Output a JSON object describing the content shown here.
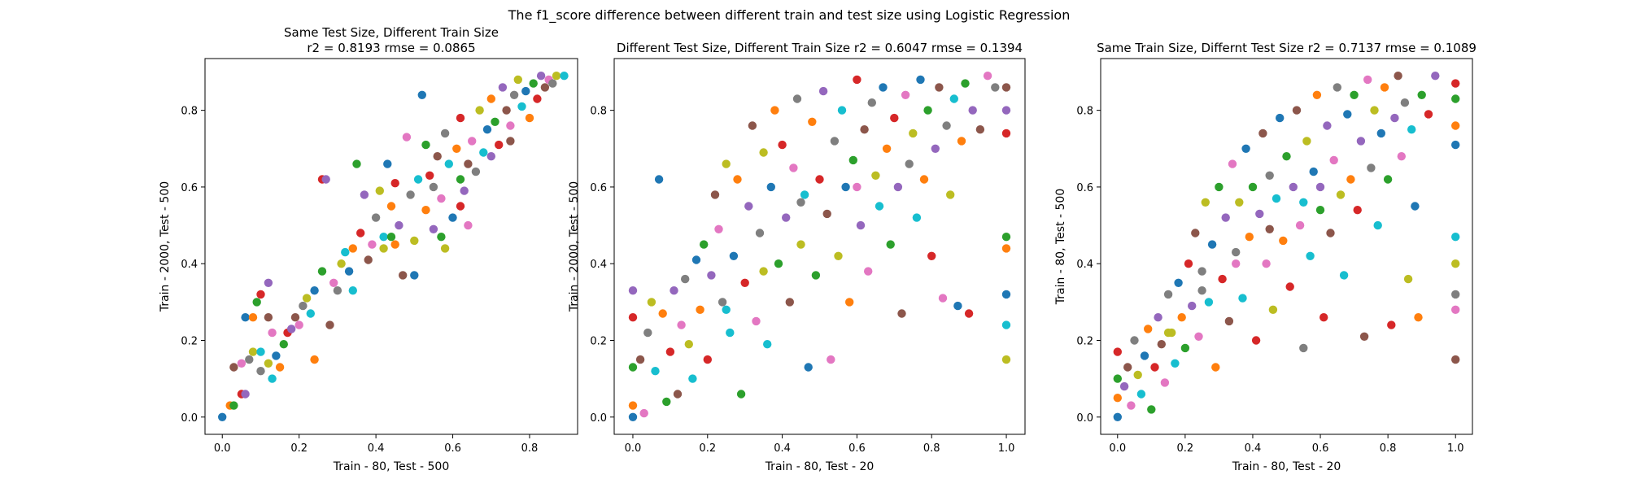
{
  "figure": {
    "title": "The f1_score difference between different train and test size using Logistic Regression"
  },
  "colors": [
    "#1f77b4",
    "#ff7f0e",
    "#2ca02c",
    "#d62728",
    "#9467bd",
    "#8c564b",
    "#e377c2",
    "#7f7f7f",
    "#bcbd22",
    "#17becf"
  ],
  "chart_data": [
    {
      "type": "scatter",
      "title_lines": [
        "Same Test Size, Different Train Size",
        "r2 = 0.8193 rmse = 0.0865"
      ],
      "xlabel": "Train - 80, Test - 500",
      "ylabel": "Train - 2000, Test - 500",
      "xlim": [
        -0.045,
        0.925
      ],
      "ylim": [
        -0.045,
        0.935
      ],
      "xticks": [
        0.0,
        0.2,
        0.4,
        0.6,
        0.8
      ],
      "yticks": [
        0.0,
        0.2,
        0.4,
        0.6,
        0.8
      ],
      "grid": false,
      "points": [
        [
          0.0,
          0.0
        ],
        [
          0.02,
          0.03
        ],
        [
          0.03,
          0.03
        ],
        [
          0.05,
          0.06
        ],
        [
          0.06,
          0.06
        ],
        [
          0.03,
          0.13
        ],
        [
          0.05,
          0.14
        ],
        [
          0.07,
          0.15
        ],
        [
          0.08,
          0.17
        ],
        [
          0.1,
          0.17
        ],
        [
          0.06,
          0.26
        ],
        [
          0.08,
          0.26
        ],
        [
          0.09,
          0.3
        ],
        [
          0.1,
          0.32
        ],
        [
          0.12,
          0.35
        ],
        [
          0.12,
          0.26
        ],
        [
          0.13,
          0.22
        ],
        [
          0.1,
          0.12
        ],
        [
          0.12,
          0.14
        ],
        [
          0.13,
          0.1
        ],
        [
          0.14,
          0.16
        ],
        [
          0.15,
          0.13
        ],
        [
          0.16,
          0.19
        ],
        [
          0.17,
          0.22
        ],
        [
          0.18,
          0.23
        ],
        [
          0.19,
          0.26
        ],
        [
          0.2,
          0.24
        ],
        [
          0.21,
          0.29
        ],
        [
          0.22,
          0.31
        ],
        [
          0.23,
          0.27
        ],
        [
          0.24,
          0.33
        ],
        [
          0.24,
          0.15
        ],
        [
          0.26,
          0.38
        ],
        [
          0.26,
          0.62
        ],
        [
          0.27,
          0.62
        ],
        [
          0.28,
          0.24
        ],
        [
          0.29,
          0.35
        ],
        [
          0.3,
          0.33
        ],
        [
          0.31,
          0.4
        ],
        [
          0.32,
          0.43
        ],
        [
          0.33,
          0.38
        ],
        [
          0.34,
          0.44
        ],
        [
          0.35,
          0.66
        ],
        [
          0.36,
          0.48
        ],
        [
          0.37,
          0.58
        ],
        [
          0.38,
          0.41
        ],
        [
          0.39,
          0.45
        ],
        [
          0.4,
          0.52
        ],
        [
          0.41,
          0.59
        ],
        [
          0.42,
          0.47
        ],
        [
          0.43,
          0.66
        ],
        [
          0.44,
          0.55
        ],
        [
          0.44,
          0.47
        ],
        [
          0.45,
          0.61
        ],
        [
          0.46,
          0.5
        ],
        [
          0.47,
          0.37
        ],
        [
          0.48,
          0.73
        ],
        [
          0.49,
          0.58
        ],
        [
          0.5,
          0.46
        ],
        [
          0.51,
          0.62
        ],
        [
          0.52,
          0.84
        ],
        [
          0.53,
          0.54
        ],
        [
          0.53,
          0.71
        ],
        [
          0.54,
          0.63
        ],
        [
          0.55,
          0.49
        ],
        [
          0.56,
          0.68
        ],
        [
          0.57,
          0.57
        ],
        [
          0.58,
          0.74
        ],
        [
          0.58,
          0.44
        ],
        [
          0.59,
          0.66
        ],
        [
          0.6,
          0.52
        ],
        [
          0.61,
          0.7
        ],
        [
          0.62,
          0.62
        ],
        [
          0.62,
          0.78
        ],
        [
          0.63,
          0.59
        ],
        [
          0.64,
          0.66
        ],
        [
          0.65,
          0.72
        ],
        [
          0.66,
          0.64
        ],
        [
          0.67,
          0.8
        ],
        [
          0.68,
          0.69
        ],
        [
          0.69,
          0.75
        ],
        [
          0.7,
          0.83
        ],
        [
          0.71,
          0.77
        ],
        [
          0.72,
          0.71
        ],
        [
          0.73,
          0.86
        ],
        [
          0.74,
          0.8
        ],
        [
          0.75,
          0.76
        ],
        [
          0.76,
          0.84
        ],
        [
          0.77,
          0.88
        ],
        [
          0.78,
          0.81
        ],
        [
          0.79,
          0.85
        ],
        [
          0.8,
          0.78
        ],
        [
          0.81,
          0.87
        ],
        [
          0.82,
          0.83
        ],
        [
          0.83,
          0.89
        ],
        [
          0.84,
          0.86
        ],
        [
          0.85,
          0.88
        ],
        [
          0.86,
          0.87
        ],
        [
          0.87,
          0.89
        ],
        [
          0.89,
          0.89
        ],
        [
          0.5,
          0.37
        ],
        [
          0.45,
          0.45
        ],
        [
          0.57,
          0.47
        ],
        [
          0.62,
          0.55
        ],
        [
          0.7,
          0.68
        ],
        [
          0.75,
          0.72
        ],
        [
          0.64,
          0.5
        ],
        [
          0.55,
          0.6
        ],
        [
          0.42,
          0.44
        ],
        [
          0.34,
          0.33
        ]
      ]
    },
    {
      "type": "scatter",
      "title_lines": [
        "Different Test Size, Different Train Size r2 = 0.6047 rmse = 0.1394"
      ],
      "xlabel": "Train - 80, Test - 20",
      "ylabel": "Train - 2000, Test - 500",
      "xlim": [
        -0.05,
        1.05
      ],
      "ylim": [
        -0.045,
        0.935
      ],
      "xticks": [
        0.0,
        0.2,
        0.4,
        0.6,
        0.8,
        1.0
      ],
      "yticks": [
        0.0,
        0.2,
        0.4,
        0.6,
        0.8
      ],
      "grid": false,
      "points": [
        [
          0.0,
          0.0
        ],
        [
          0.0,
          0.03
        ],
        [
          0.0,
          0.13
        ],
        [
          0.0,
          0.26
        ],
        [
          0.0,
          0.33
        ],
        [
          0.02,
          0.15
        ],
        [
          0.03,
          0.01
        ],
        [
          0.04,
          0.22
        ],
        [
          0.05,
          0.3
        ],
        [
          0.06,
          0.12
        ],
        [
          0.07,
          0.62
        ],
        [
          0.08,
          0.27
        ],
        [
          0.09,
          0.04
        ],
        [
          0.1,
          0.17
        ],
        [
          0.11,
          0.33
        ],
        [
          0.12,
          0.06
        ],
        [
          0.13,
          0.24
        ],
        [
          0.14,
          0.36
        ],
        [
          0.15,
          0.19
        ],
        [
          0.16,
          0.1
        ],
        [
          0.17,
          0.41
        ],
        [
          0.18,
          0.28
        ],
        [
          0.19,
          0.45
        ],
        [
          0.2,
          0.15
        ],
        [
          0.21,
          0.37
        ],
        [
          0.22,
          0.58
        ],
        [
          0.23,
          0.49
        ],
        [
          0.24,
          0.3
        ],
        [
          0.25,
          0.66
        ],
        [
          0.26,
          0.22
        ],
        [
          0.27,
          0.42
        ],
        [
          0.28,
          0.62
        ],
        [
          0.29,
          0.06
        ],
        [
          0.3,
          0.35
        ],
        [
          0.31,
          0.55
        ],
        [
          0.32,
          0.76
        ],
        [
          0.33,
          0.25
        ],
        [
          0.34,
          0.48
        ],
        [
          0.35,
          0.69
        ],
        [
          0.36,
          0.19
        ],
        [
          0.37,
          0.6
        ],
        [
          0.38,
          0.8
        ],
        [
          0.39,
          0.4
        ],
        [
          0.4,
          0.71
        ],
        [
          0.41,
          0.52
        ],
        [
          0.42,
          0.3
        ],
        [
          0.43,
          0.65
        ],
        [
          0.44,
          0.83
        ],
        [
          0.45,
          0.45
        ],
        [
          0.46,
          0.58
        ],
        [
          0.47,
          0.13
        ],
        [
          0.48,
          0.77
        ],
        [
          0.49,
          0.37
        ],
        [
          0.5,
          0.62
        ],
        [
          0.51,
          0.85
        ],
        [
          0.52,
          0.53
        ],
        [
          0.53,
          0.15
        ],
        [
          0.54,
          0.72
        ],
        [
          0.55,
          0.42
        ],
        [
          0.56,
          0.8
        ],
        [
          0.57,
          0.6
        ],
        [
          0.58,
          0.3
        ],
        [
          0.59,
          0.67
        ],
        [
          0.6,
          0.88
        ],
        [
          0.61,
          0.5
        ],
        [
          0.62,
          0.75
        ],
        [
          0.63,
          0.38
        ],
        [
          0.64,
          0.82
        ],
        [
          0.65,
          0.63
        ],
        [
          0.66,
          0.55
        ],
        [
          0.67,
          0.86
        ],
        [
          0.68,
          0.7
        ],
        [
          0.69,
          0.45
        ],
        [
          0.7,
          0.78
        ],
        [
          0.71,
          0.6
        ],
        [
          0.72,
          0.27
        ],
        [
          0.73,
          0.84
        ],
        [
          0.74,
          0.66
        ],
        [
          0.75,
          0.74
        ],
        [
          0.76,
          0.52
        ],
        [
          0.77,
          0.88
        ],
        [
          0.78,
          0.62
        ],
        [
          0.79,
          0.8
        ],
        [
          0.8,
          0.42
        ],
        [
          0.81,
          0.7
        ],
        [
          0.82,
          0.86
        ],
        [
          0.83,
          0.31
        ],
        [
          0.84,
          0.76
        ],
        [
          0.85,
          0.58
        ],
        [
          0.86,
          0.83
        ],
        [
          0.87,
          0.29
        ],
        [
          0.88,
          0.72
        ],
        [
          0.89,
          0.87
        ],
        [
          0.9,
          0.27
        ],
        [
          0.91,
          0.8
        ],
        [
          0.93,
          0.75
        ],
        [
          0.95,
          0.89
        ],
        [
          0.97,
          0.86
        ],
        [
          1.0,
          0.15
        ],
        [
          1.0,
          0.24
        ],
        [
          1.0,
          0.32
        ],
        [
          1.0,
          0.44
        ],
        [
          1.0,
          0.47
        ],
        [
          1.0,
          0.74
        ],
        [
          1.0,
          0.8
        ],
        [
          1.0,
          0.86
        ],
        [
          0.6,
          0.6
        ],
        [
          0.45,
          0.56
        ],
        [
          0.35,
          0.38
        ],
        [
          0.25,
          0.28
        ]
      ]
    },
    {
      "type": "scatter",
      "title_lines": [
        "Same Train Size, Differnt Test Size r2 = 0.7137 rmse = 0.1089"
      ],
      "xlabel": "Train - 80, Test - 20",
      "ylabel": "Train - 80, Test - 500",
      "xlim": [
        -0.05,
        1.05
      ],
      "ylim": [
        -0.045,
        0.935
      ],
      "xticks": [
        0.0,
        0.2,
        0.4,
        0.6,
        0.8,
        1.0
      ],
      "yticks": [
        0.0,
        0.2,
        0.4,
        0.6,
        0.8
      ],
      "grid": false,
      "points": [
        [
          0.0,
          0.0
        ],
        [
          0.0,
          0.05
        ],
        [
          0.0,
          0.1
        ],
        [
          0.0,
          0.17
        ],
        [
          0.02,
          0.08
        ],
        [
          0.03,
          0.13
        ],
        [
          0.04,
          0.03
        ],
        [
          0.05,
          0.2
        ],
        [
          0.06,
          0.11
        ],
        [
          0.07,
          0.06
        ],
        [
          0.08,
          0.16
        ],
        [
          0.09,
          0.23
        ],
        [
          0.1,
          0.02
        ],
        [
          0.11,
          0.13
        ],
        [
          0.12,
          0.26
        ],
        [
          0.13,
          0.19
        ],
        [
          0.14,
          0.09
        ],
        [
          0.15,
          0.32
        ],
        [
          0.16,
          0.22
        ],
        [
          0.17,
          0.14
        ],
        [
          0.18,
          0.35
        ],
        [
          0.19,
          0.26
        ],
        [
          0.2,
          0.18
        ],
        [
          0.21,
          0.4
        ],
        [
          0.22,
          0.29
        ],
        [
          0.23,
          0.48
        ],
        [
          0.24,
          0.21
        ],
        [
          0.25,
          0.38
        ],
        [
          0.26,
          0.56
        ],
        [
          0.27,
          0.3
        ],
        [
          0.28,
          0.45
        ],
        [
          0.29,
          0.13
        ],
        [
          0.3,
          0.6
        ],
        [
          0.31,
          0.36
        ],
        [
          0.32,
          0.52
        ],
        [
          0.33,
          0.25
        ],
        [
          0.34,
          0.66
        ],
        [
          0.35,
          0.43
        ],
        [
          0.36,
          0.56
        ],
        [
          0.37,
          0.31
        ],
        [
          0.38,
          0.7
        ],
        [
          0.39,
          0.47
        ],
        [
          0.4,
          0.6
        ],
        [
          0.41,
          0.2
        ],
        [
          0.42,
          0.53
        ],
        [
          0.43,
          0.74
        ],
        [
          0.44,
          0.4
        ],
        [
          0.45,
          0.63
        ],
        [
          0.46,
          0.28
        ],
        [
          0.47,
          0.57
        ],
        [
          0.48,
          0.78
        ],
        [
          0.49,
          0.46
        ],
        [
          0.5,
          0.68
        ],
        [
          0.51,
          0.34
        ],
        [
          0.52,
          0.6
        ],
        [
          0.53,
          0.8
        ],
        [
          0.54,
          0.5
        ],
        [
          0.55,
          0.18
        ],
        [
          0.56,
          0.72
        ],
        [
          0.57,
          0.42
        ],
        [
          0.58,
          0.64
        ],
        [
          0.59,
          0.84
        ],
        [
          0.6,
          0.54
        ],
        [
          0.61,
          0.26
        ],
        [
          0.62,
          0.76
        ],
        [
          0.63,
          0.48
        ],
        [
          0.64,
          0.67
        ],
        [
          0.65,
          0.86
        ],
        [
          0.66,
          0.58
        ],
        [
          0.67,
          0.37
        ],
        [
          0.68,
          0.79
        ],
        [
          0.69,
          0.62
        ],
        [
          0.7,
          0.84
        ],
        [
          0.71,
          0.54
        ],
        [
          0.72,
          0.72
        ],
        [
          0.73,
          0.21
        ],
        [
          0.74,
          0.88
        ],
        [
          0.75,
          0.65
        ],
        [
          0.76,
          0.8
        ],
        [
          0.77,
          0.5
        ],
        [
          0.78,
          0.74
        ],
        [
          0.79,
          0.86
        ],
        [
          0.8,
          0.62
        ],
        [
          0.81,
          0.24
        ],
        [
          0.82,
          0.78
        ],
        [
          0.83,
          0.89
        ],
        [
          0.84,
          0.68
        ],
        [
          0.85,
          0.82
        ],
        [
          0.86,
          0.36
        ],
        [
          0.87,
          0.75
        ],
        [
          0.88,
          0.55
        ],
        [
          0.89,
          0.26
        ],
        [
          0.9,
          0.84
        ],
        [
          0.92,
          0.79
        ],
        [
          0.94,
          0.89
        ],
        [
          1.0,
          0.15
        ],
        [
          1.0,
          0.28
        ],
        [
          1.0,
          0.32
        ],
        [
          1.0,
          0.4
        ],
        [
          1.0,
          0.47
        ],
        [
          1.0,
          0.71
        ],
        [
          1.0,
          0.76
        ],
        [
          1.0,
          0.83
        ],
        [
          1.0,
          0.87
        ],
        [
          0.6,
          0.6
        ],
        [
          0.45,
          0.49
        ],
        [
          0.35,
          0.4
        ],
        [
          0.25,
          0.33
        ],
        [
          0.15,
          0.22
        ],
        [
          0.55,
          0.56
        ]
      ]
    }
  ]
}
